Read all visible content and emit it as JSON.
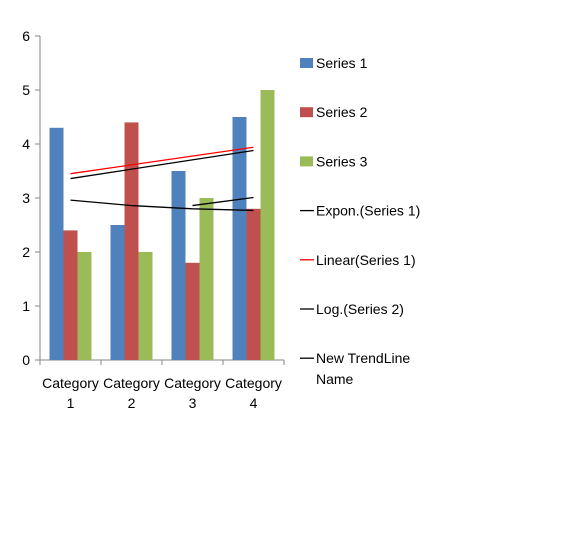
{
  "chart_data": {
    "type": "bar",
    "categories": [
      [
        "Category",
        "1"
      ],
      [
        "Category",
        "2"
      ],
      [
        "Category",
        "3"
      ],
      [
        "Category",
        "4"
      ]
    ],
    "series": [
      {
        "name": "Series 1",
        "values": [
          4.3,
          2.5,
          3.5,
          4.5
        ],
        "color": "#4F81BD"
      },
      {
        "name": "Series 2",
        "values": [
          2.4,
          4.4,
          1.8,
          2.8
        ],
        "color": "#C0504D"
      },
      {
        "name": "Series 3",
        "values": [
          2.0,
          2.0,
          3.0,
          5.0
        ],
        "color": "#9BBB59"
      }
    ],
    "trendlines": [
      {
        "name": "Expon.(Series 1)",
        "color": "#000000",
        "x_start": 1,
        "x_end": 4,
        "points": [
          [
            1,
            3.36
          ],
          [
            4,
            3.88
          ]
        ]
      },
      {
        "name": "Linear(Series 1)",
        "color": "#FF0000",
        "x_start": 1,
        "x_end": 4,
        "points": [
          [
            1,
            3.45
          ],
          [
            4,
            3.94
          ]
        ]
      },
      {
        "name": "Log.(Series 2)",
        "color": "#000000",
        "x_start": 1,
        "x_end": 4,
        "points": [
          [
            1,
            2.96
          ],
          [
            2,
            2.86
          ],
          [
            3,
            2.8
          ],
          [
            4,
            2.77
          ]
        ]
      },
      {
        "name": "New TrendLine Name",
        "color": "#000000",
        "x_start": 3,
        "x_end": 4,
        "points": [
          [
            3,
            2.86
          ],
          [
            4,
            3.01
          ]
        ]
      }
    ],
    "legend_labels": [
      [
        "Series 1"
      ],
      [
        "Series 2"
      ],
      [
        "Series 3"
      ],
      [
        "Expon.(Series 1)"
      ],
      [
        "Linear(Series 1)"
      ],
      [
        "Log.(Series 2)"
      ],
      [
        "New TrendLine",
        "Name"
      ]
    ],
    "ylim": [
      0,
      6
    ],
    "yticks": [
      0,
      1,
      2,
      3,
      4,
      5,
      6
    ],
    "legend_position": "right",
    "grid": false
  }
}
